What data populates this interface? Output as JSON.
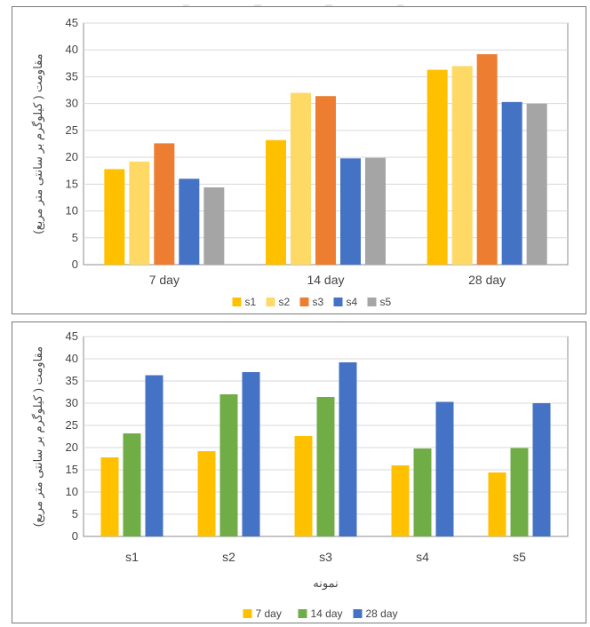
{
  "chart_data": [
    {
      "type": "bar",
      "title": "",
      "xlabel": "",
      "ylabel": "مقاومت ( کیلوگرم بر سانتی متر مربع)",
      "ylim": [
        0,
        45
      ],
      "yticks": [
        0,
        5,
        10,
        15,
        20,
        25,
        30,
        35,
        40,
        45
      ],
      "grid": true,
      "legend_position": "bottom",
      "categories": [
        "7 day",
        "14 day",
        "28 day"
      ],
      "series": [
        {
          "name": "s1",
          "color": "#ffc000",
          "values": [
            17.8,
            23.2,
            36.3
          ]
        },
        {
          "name": "s2",
          "color": "#ffd966",
          "values": [
            19.2,
            32.0,
            37.0
          ]
        },
        {
          "name": "s3",
          "color": "#ed7d31",
          "values": [
            22.6,
            31.4,
            39.2
          ]
        },
        {
          "name": "s4",
          "color": "#4472c4",
          "values": [
            16.0,
            19.8,
            30.3
          ]
        },
        {
          "name": "s5",
          "color": "#a5a5a5",
          "values": [
            14.4,
            19.9,
            30.0
          ]
        }
      ]
    },
    {
      "type": "bar",
      "title": "",
      "xlabel": "نمونه",
      "ylabel": "مقاومت ( کیلوگرم بر سانتی متر مربع)",
      "ylim": [
        0,
        45
      ],
      "yticks": [
        0,
        5,
        10,
        15,
        20,
        25,
        30,
        35,
        40,
        45
      ],
      "grid": true,
      "legend_position": "bottom",
      "categories": [
        "s1",
        "s2",
        "s3",
        "s4",
        "s5"
      ],
      "series": [
        {
          "name": "7 day",
          "color": "#ffc000",
          "values": [
            17.8,
            19.2,
            22.6,
            16.0,
            14.4
          ]
        },
        {
          "name": "14 day",
          "color": "#70ad47",
          "values": [
            23.2,
            32.0,
            31.4,
            19.8,
            19.9
          ]
        },
        {
          "name": "28 day",
          "color": "#4472c4",
          "values": [
            36.3,
            37.0,
            39.2,
            30.3,
            30.0
          ]
        }
      ]
    }
  ]
}
